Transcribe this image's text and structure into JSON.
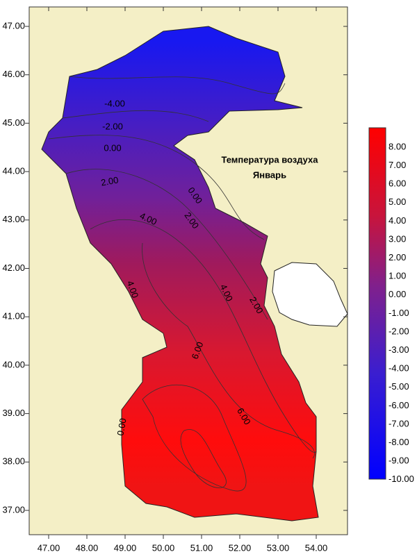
{
  "map": {
    "title": "Температура воздуха",
    "subtitle": "Январь",
    "x_axis_labels": [
      "47.00",
      "48.00",
      "49.00",
      "50.00",
      "51.00",
      "52.00",
      "53.00",
      "54.00"
    ],
    "y_axis_labels": [
      "47.00",
      "46.00",
      "45.00",
      "44.00",
      "43.00",
      "42.00",
      "41.00",
      "40.00",
      "39.00",
      "38.00",
      "37.00"
    ],
    "colorbar_labels": [
      "8.00",
      "7.00",
      "6.00",
      "5.00",
      "4.00",
      "3.00",
      "2.00",
      "1.00",
      "0.00",
      "-1.00",
      "-2.00",
      "-3.00",
      "-4.00",
      "-5.00",
      "-6.00",
      "-7.00",
      "-8.00",
      "-9.00",
      "-10.00"
    ],
    "contour_labels": [
      "-4.00",
      "-2.00",
      "0.00",
      "2.00",
      "4.00",
      "4.00",
      "0.00",
      "2.00",
      "4.00",
      "2.00",
      "6.00",
      "6.00",
      "0.00"
    ]
  }
}
